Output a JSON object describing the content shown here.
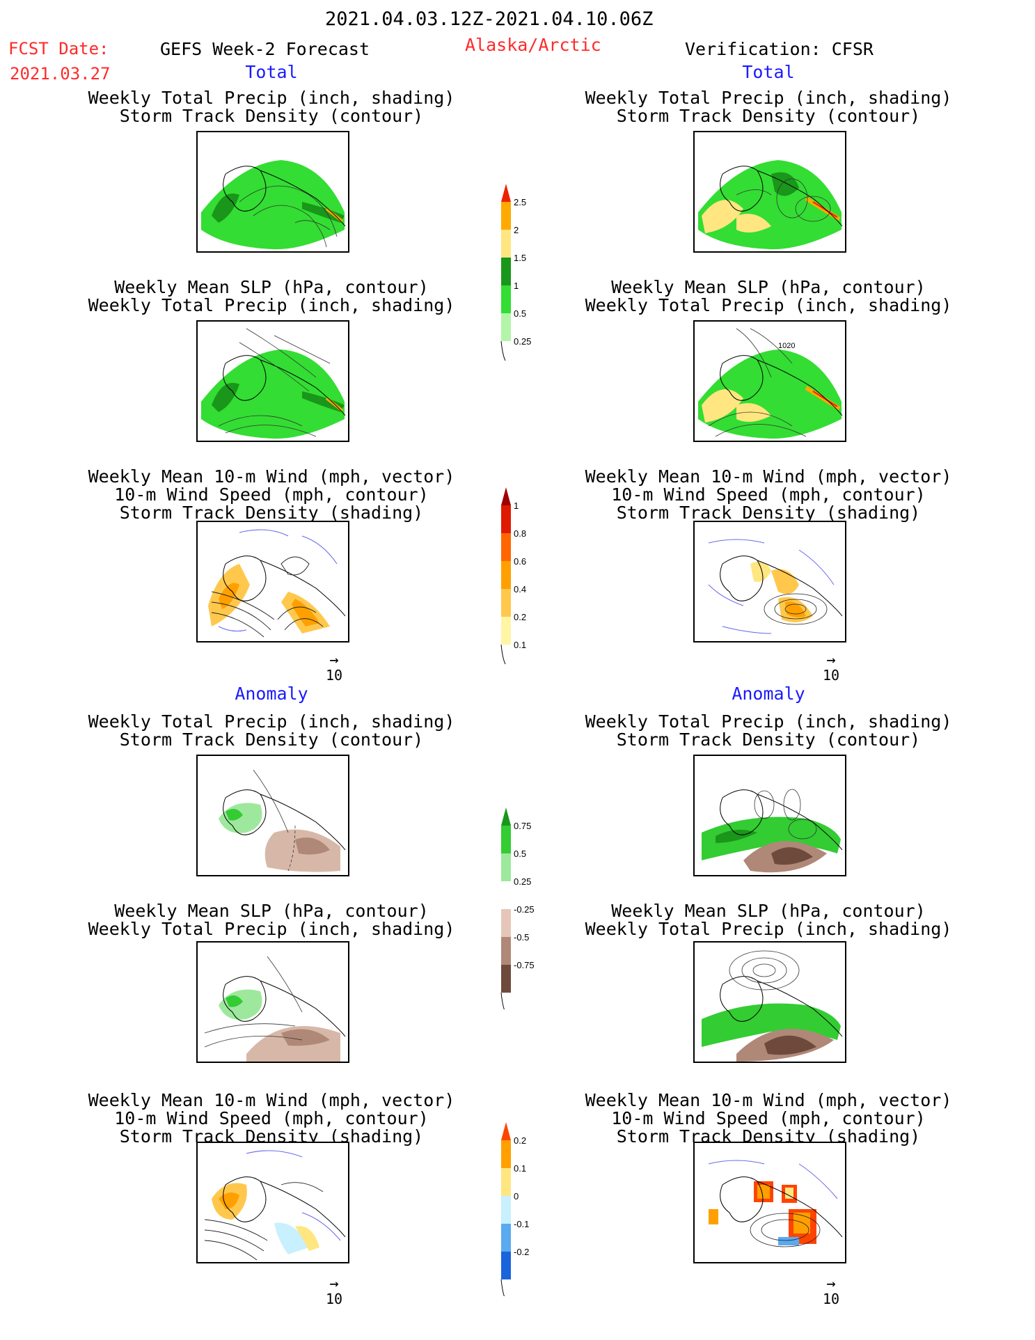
{
  "header": {
    "date_range": "2021.04.03.12Z-2021.04.10.06Z",
    "fcst_label": "FCST Date:",
    "fcst_date": "2021.03.27",
    "model": "GEFS Week-2 Forecast",
    "region": "Alaska/Arctic",
    "verification": "Verification: CFSR"
  },
  "sections": {
    "total": "Total",
    "anomaly": "Anomaly"
  },
  "panel_titles": {
    "precip_track": [
      "Weekly Total Precip (inch, shading)",
      "Storm Track Density (contour)"
    ],
    "slp_precip": [
      "Weekly Mean SLP (hPa, contour)",
      "Weekly Total Precip (inch, shading)"
    ],
    "wind_track": [
      "Weekly Mean 10-m Wind (mph, vector)",
      "10-m Wind Speed (mph, contour)",
      "Storm Track Density (shading)"
    ]
  },
  "contour_label": "1020",
  "vector_ref": "10",
  "colorbars": {
    "precip_total": {
      "labels": [
        "2.5",
        "2",
        "1.5",
        "1",
        "0.5",
        "0.25"
      ],
      "colors": [
        "#ee2200",
        "#ffaa00",
        "#ffe680",
        "#1a961a",
        "#33dd33",
        "#b3f5a8"
      ]
    },
    "track_total": {
      "labels": [
        "1",
        "0.8",
        "0.6",
        "0.4",
        "0.2",
        "0.1"
      ],
      "colors": [
        "#a00000",
        "#e01a00",
        "#ff6600",
        "#ffa000",
        "#ffc84d",
        "#fff5a5"
      ]
    },
    "precip_anom": {
      "labels": [
        "0.75",
        "0.5",
        "0.25",
        "-0.25",
        "-0.5",
        "-0.75"
      ],
      "colors": [
        "#1a961a",
        "#33cc33",
        "#9de89d",
        "#ffffff",
        "#e6c6b8",
        "#b08878",
        "#6e4a3c"
      ]
    },
    "track_anom": {
      "labels": [
        "0.2",
        "0.1",
        "0",
        "-0.1",
        "-0.2"
      ],
      "colors": [
        "#ff4400",
        "#ffa000",
        "#ffe680",
        "#c8f0ff",
        "#5aaaf0",
        "#1a64dc"
      ]
    }
  }
}
